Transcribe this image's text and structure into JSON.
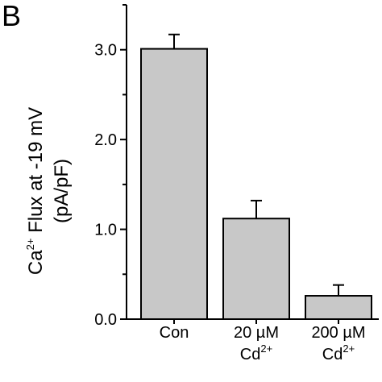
{
  "panel_label": "B",
  "chart_data": {
    "type": "bar",
    "categories": [
      {
        "line1": "Con",
        "line2_base": "",
        "line2_sup": ""
      },
      {
        "line1": "20 µM",
        "line2_base": "Cd",
        "line2_sup": "2+"
      },
      {
        "line1": "200 µM",
        "line2_base": "Cd",
        "line2_sup": "2+"
      }
    ],
    "values": [
      3.01,
      1.12,
      0.26
    ],
    "errors": [
      0.16,
      0.2,
      0.12
    ],
    "ylim": [
      0,
      3.5
    ],
    "yticks": [
      0.0,
      1.0,
      2.0,
      3.0
    ],
    "ytick_labels": [
      "0.0",
      "1.0",
      "2.0",
      "3.0"
    ],
    "ylabel": {
      "line1_pre": "Ca",
      "line1_sup": "2+",
      "line1_post": " Flux at -19 mV",
      "line2": "(pA/pF)"
    },
    "xlabel": "",
    "bar_color": "#c8c8c8",
    "edge_color": "#000000"
  }
}
